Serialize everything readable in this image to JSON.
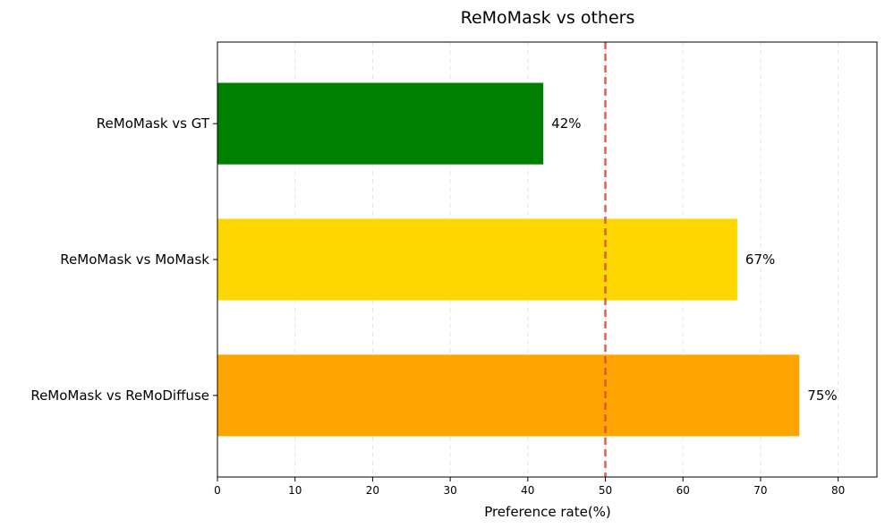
{
  "chart_data": {
    "type": "bar",
    "orientation": "horizontal",
    "title": "ReMoMask vs others",
    "xlabel": "Preference rate(%)",
    "ylabel": "",
    "categories": [
      "ReMoMask vs GT",
      "ReMoMask vs MoMask",
      "ReMoMask vs ReMoDiffuse"
    ],
    "values": [
      42,
      67,
      75
    ],
    "data_labels": [
      "42%",
      "67%",
      "75%"
    ],
    "colors": [
      "#008000",
      "#FFD700",
      "#FFA500"
    ],
    "xlim": [
      0,
      85
    ],
    "xticks": [
      0,
      10,
      20,
      30,
      40,
      50,
      60,
      70,
      80
    ],
    "xtick_labels": [
      "0",
      "10",
      "20",
      "30",
      "40",
      "50",
      "60",
      "70",
      "80"
    ],
    "grid": "x-axis dashed",
    "reference_line": {
      "value": 50,
      "color": "#e74c3c",
      "style": "dashed"
    }
  }
}
